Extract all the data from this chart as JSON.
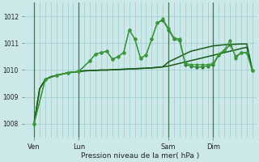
{
  "bg_color": "#cce8e8",
  "grid_color": "#99cccc",
  "line_color_s1": "#1a5c1a",
  "line_color_s2": "#1a5c1a",
  "line_color_s3": "#2e7d2e",
  "line_color_s4": "#3a9a3a",
  "xlabel": "Pression niveau de la mer( hPa )",
  "ylim": [
    1007.5,
    1012.5
  ],
  "yticks": [
    1008,
    1009,
    1010,
    1011,
    1012
  ],
  "xlim": [
    -2,
    122
  ],
  "xtick_labels": [
    "Ven",
    "Lun",
    "Sam",
    "Dim"
  ],
  "xtick_positions": [
    3,
    27,
    75,
    99
  ],
  "vlines": [
    3,
    27,
    75,
    99
  ],
  "s1_x": [
    3,
    6,
    9,
    12,
    15,
    18,
    21,
    24,
    27,
    30,
    33,
    36,
    39,
    42,
    45,
    48,
    51,
    54,
    57,
    60,
    63,
    66,
    69,
    72,
    75,
    78,
    81,
    84,
    87,
    90,
    93,
    96,
    99,
    102,
    105,
    108,
    111,
    114,
    117,
    120
  ],
  "s1_y": [
    1008.0,
    1009.3,
    1009.65,
    1009.75,
    1009.8,
    1009.85,
    1009.9,
    1009.92,
    1009.95,
    1009.97,
    1009.98,
    1009.99,
    1010.0,
    1010.0,
    1010.01,
    1010.02,
    1010.03,
    1010.04,
    1010.05,
    1010.06,
    1010.07,
    1010.08,
    1010.1,
    1010.12,
    1010.15,
    1010.2,
    1010.25,
    1010.3,
    1010.35,
    1010.4,
    1010.45,
    1010.5,
    1010.55,
    1010.6,
    1010.65,
    1010.7,
    1010.75,
    1010.8,
    1010.85,
    1009.97
  ],
  "s2_x": [
    3,
    6,
    9,
    12,
    15,
    18,
    21,
    24,
    27,
    30,
    33,
    36,
    39,
    42,
    45,
    48,
    51,
    54,
    57,
    60,
    63,
    66,
    69,
    72,
    75,
    78,
    81,
    84,
    87,
    90,
    93,
    96,
    99,
    102,
    105,
    108,
    111,
    114,
    117,
    120
  ],
  "s2_y": [
    1008.0,
    1009.3,
    1009.65,
    1009.75,
    1009.8,
    1009.85,
    1009.9,
    1009.92,
    1009.95,
    1009.97,
    1009.98,
    1009.99,
    1010.0,
    1010.0,
    1010.01,
    1010.02,
    1010.03,
    1010.04,
    1010.05,
    1010.06,
    1010.07,
    1010.08,
    1010.1,
    1010.12,
    1010.3,
    1010.4,
    1010.5,
    1010.6,
    1010.7,
    1010.75,
    1010.8,
    1010.85,
    1010.9,
    1010.92,
    1010.94,
    1010.95,
    1010.96,
    1010.97,
    1010.97,
    1009.97
  ],
  "s3_x": [
    3,
    9,
    15,
    21,
    27,
    33,
    36,
    39,
    42,
    45,
    48,
    51,
    54,
    57,
    60,
    63,
    66,
    69,
    72,
    75,
    78,
    81,
    84,
    87,
    90,
    93,
    96,
    99,
    102,
    105,
    108,
    111,
    114,
    117,
    120
  ],
  "s3_y": [
    1008.0,
    1009.65,
    1009.8,
    1009.9,
    1009.95,
    1010.35,
    1010.6,
    1010.65,
    1010.7,
    1010.4,
    1010.5,
    1010.65,
    1011.5,
    1011.15,
    1010.45,
    1010.55,
    1011.15,
    1011.75,
    1011.85,
    1011.5,
    1011.15,
    1011.1,
    1010.2,
    1010.15,
    1010.1,
    1010.12,
    1010.15,
    1010.2,
    1010.55,
    1010.7,
    1010.95,
    1010.5,
    1010.65,
    1010.65,
    1009.97
  ],
  "s4_x": [
    3,
    9,
    15,
    21,
    27,
    33,
    36,
    39,
    42,
    45,
    48,
    51,
    54,
    57,
    60,
    63,
    66,
    69,
    72,
    75,
    78,
    81,
    84,
    87,
    90,
    93,
    96,
    99,
    102,
    105,
    108,
    111,
    114,
    117,
    120
  ],
  "s4_y": [
    1008.0,
    1009.65,
    1009.8,
    1009.9,
    1009.95,
    1010.35,
    1010.6,
    1010.65,
    1010.7,
    1010.4,
    1010.5,
    1010.65,
    1011.5,
    1011.15,
    1010.45,
    1010.55,
    1011.15,
    1011.75,
    1011.9,
    1011.55,
    1011.2,
    1011.15,
    1010.25,
    1010.2,
    1010.2,
    1010.2,
    1010.2,
    1010.25,
    1010.6,
    1010.75,
    1011.1,
    1010.45,
    1010.65,
    1010.65,
    1009.97
  ]
}
